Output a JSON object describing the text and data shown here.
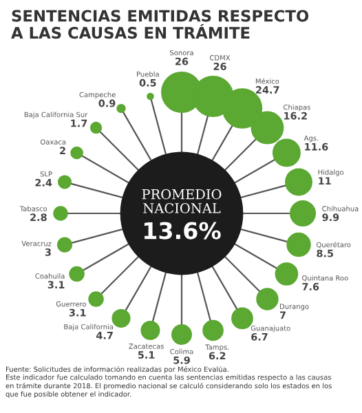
{
  "chart_data": {
    "type": "other",
    "title": "SENTENCIAS EMITIDAS RESPECTO\nA LAS CAUSAS EN TRÁMITE",
    "categories": [
      "Sonora",
      "CDMX",
      "México",
      "Chiapas",
      "Ags.",
      "Hidalgo",
      "Chihuahua",
      "Querétaro",
      "Quintana Roo",
      "Durango",
      "Guanajuato",
      "Tamps.",
      "Colima",
      "Zacatecas",
      "Baja California",
      "Guerrero",
      "Coahuila",
      "Veracruz",
      "Tabasco",
      "SLP",
      "Oaxaca",
      "Baja California Sur",
      "Campeche",
      "Puebla"
    ],
    "values": [
      26,
      26,
      24.7,
      16.2,
      11.6,
      11,
      9.9,
      8.5,
      7.6,
      7,
      6.7,
      6.2,
      5.9,
      5.1,
      4.7,
      3.1,
      3.1,
      3,
      2.8,
      2.4,
      2,
      1.7,
      0.9,
      0.5
    ],
    "color": "#5ba832",
    "data_labels": true,
    "annotations": [
      "PROMEDIO\nNACIONAL",
      "13.6%",
      "Fuente: Solicitudes de información realizadas por México Evalúa.",
      "Este indicador fue calculado tomando en cuenta las sentencias emitidas respecto a las causas\nen trámite durante 2018. El promedio nacional se calculó considerando solo los estados en los\nque fue posible obtener el indicador."
    ]
  }
}
